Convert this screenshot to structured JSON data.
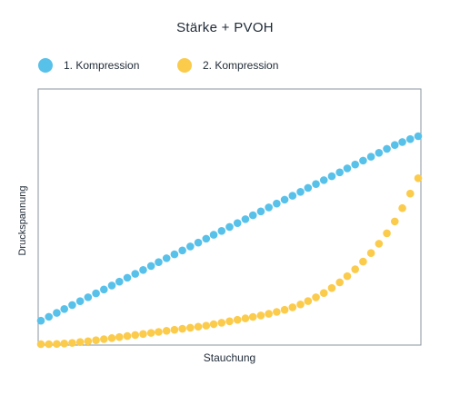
{
  "chart_data": {
    "type": "scatter",
    "title": "Stärke + PVOH",
    "xlabel": "Stauchung",
    "ylabel": "Druckspannung",
    "xlim": [
      0,
      1
    ],
    "ylim": [
      0,
      1
    ],
    "grid": false,
    "legend_position": "top-left",
    "series": [
      {
        "name": "1. Kompression",
        "color": "#58c1ea",
        "x": [
          0.0,
          0.021,
          0.042,
          0.062,
          0.083,
          0.104,
          0.125,
          0.146,
          0.167,
          0.188,
          0.208,
          0.229,
          0.25,
          0.271,
          0.292,
          0.312,
          0.333,
          0.354,
          0.375,
          0.396,
          0.417,
          0.438,
          0.458,
          0.479,
          0.5,
          0.521,
          0.542,
          0.562,
          0.583,
          0.604,
          0.625,
          0.646,
          0.667,
          0.688,
          0.708,
          0.729,
          0.75,
          0.771,
          0.792,
          0.812,
          0.833,
          0.854,
          0.875,
          0.896,
          0.917,
          0.938,
          0.958,
          0.979,
          1.0
        ],
        "y": [
          0.055,
          0.075,
          0.095,
          0.115,
          0.135,
          0.155,
          0.175,
          0.195,
          0.215,
          0.235,
          0.255,
          0.275,
          0.295,
          0.315,
          0.335,
          0.355,
          0.375,
          0.395,
          0.415,
          0.435,
          0.455,
          0.475,
          0.495,
          0.515,
          0.535,
          0.555,
          0.575,
          0.595,
          0.615,
          0.635,
          0.655,
          0.675,
          0.695,
          0.715,
          0.735,
          0.755,
          0.775,
          0.795,
          0.815,
          0.835,
          0.855,
          0.875,
          0.895,
          0.915,
          0.935,
          0.955,
          0.97,
          0.985,
          1.0
        ]
      },
      {
        "name": "2. Kompression",
        "color": "#fbcb4c",
        "x": [
          0.0,
          0.021,
          0.042,
          0.062,
          0.083,
          0.104,
          0.125,
          0.146,
          0.167,
          0.188,
          0.208,
          0.229,
          0.25,
          0.271,
          0.292,
          0.312,
          0.333,
          0.354,
          0.375,
          0.396,
          0.417,
          0.438,
          0.458,
          0.479,
          0.5,
          0.521,
          0.542,
          0.562,
          0.583,
          0.604,
          0.625,
          0.646,
          0.667,
          0.688,
          0.708,
          0.729,
          0.75,
          0.771,
          0.792,
          0.812,
          0.833,
          0.854,
          0.875,
          0.896,
          0.917,
          0.938,
          0.958,
          0.979,
          1.0
        ],
        "y": [
          0.0,
          0.0,
          0.001,
          0.003,
          0.006,
          0.01,
          0.014,
          0.019,
          0.024,
          0.029,
          0.034,
          0.039,
          0.044,
          0.049,
          0.054,
          0.059,
          0.064,
          0.069,
          0.074,
          0.079,
          0.084,
          0.089,
          0.096,
          0.103,
          0.11,
          0.117,
          0.124,
          0.131,
          0.138,
          0.146,
          0.155,
          0.165,
          0.177,
          0.191,
          0.207,
          0.225,
          0.246,
          0.27,
          0.297,
          0.327,
          0.36,
          0.397,
          0.438,
          0.483,
          0.533,
          0.59,
          0.654,
          0.724,
          0.798
        ]
      }
    ]
  }
}
